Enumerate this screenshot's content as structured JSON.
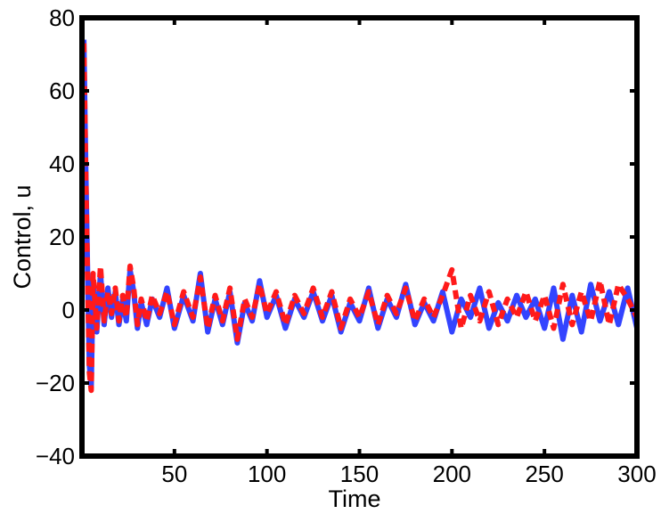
{
  "chart_data": {
    "type": "line",
    "title": "",
    "xlabel": "Time",
    "ylabel": "Control, u",
    "xlim": [
      0,
      300
    ],
    "ylim": [
      -40,
      80
    ],
    "xticks": [
      50,
      100,
      150,
      200,
      250,
      300
    ],
    "yticks": [
      -40,
      -20,
      0,
      20,
      40,
      60,
      80
    ],
    "xtick_labels": [
      "50",
      "100",
      "150",
      "200",
      "250",
      "300"
    ],
    "ytick_labels": [
      "−40",
      "−20",
      "0",
      "20",
      "40",
      "60",
      "80"
    ],
    "grid": false,
    "legend": "none",
    "series": [
      {
        "color": "#3344ff",
        "line_style": "solid",
        "x": [
          1,
          2,
          3,
          4,
          5,
          6,
          8,
          10,
          12,
          14,
          16,
          18,
          20,
          22,
          24,
          26,
          28,
          30,
          32,
          35,
          38,
          42,
          46,
          50,
          55,
          60,
          64,
          68,
          72,
          76,
          80,
          84,
          88,
          92,
          96,
          100,
          105,
          110,
          115,
          120,
          125,
          130,
          135,
          140,
          145,
          150,
          155,
          160,
          165,
          170,
          175,
          180,
          185,
          190,
          195,
          200,
          205,
          210,
          215,
          220,
          225,
          230,
          235,
          240,
          245,
          250,
          255,
          260,
          265,
          270,
          275,
          280,
          285,
          290,
          295,
          300
        ],
        "y": [
          74,
          40,
          12,
          -15,
          -21,
          8,
          -6,
          10,
          -4,
          6,
          -2,
          5,
          -4,
          3,
          -3,
          11,
          5,
          -5,
          2,
          -4,
          3,
          -2,
          6,
          -5,
          4,
          -3,
          10,
          -6,
          3,
          -4,
          5,
          -9,
          2,
          -3,
          8,
          -2,
          4,
          -5,
          3,
          -2,
          5,
          -3,
          4,
          -6,
          2,
          -3,
          6,
          -5,
          3,
          -2,
          7,
          -4,
          2,
          -3,
          5,
          -6,
          3,
          -2,
          6,
          -5,
          2,
          -3,
          4,
          -2,
          3,
          -5,
          6,
          -8,
          4,
          -6,
          7,
          -3,
          5,
          -4,
          6,
          -5
        ]
      },
      {
        "color": "#ff1a1a",
        "line_style": "dashed",
        "x": [
          1,
          2,
          3,
          4,
          5,
          6,
          8,
          10,
          12,
          14,
          16,
          18,
          20,
          22,
          24,
          26,
          28,
          30,
          32,
          35,
          38,
          42,
          46,
          50,
          55,
          60,
          64,
          68,
          72,
          76,
          80,
          84,
          88,
          92,
          96,
          100,
          105,
          110,
          115,
          120,
          125,
          130,
          135,
          140,
          145,
          150,
          155,
          160,
          165,
          170,
          175,
          180,
          185,
          190,
          195,
          200,
          205,
          210,
          215,
          220,
          225,
          230,
          235,
          240,
          245,
          250,
          255,
          260,
          265,
          270,
          275,
          280,
          285,
          290,
          295,
          300
        ],
        "y": [
          73,
          38,
          10,
          -17,
          -22,
          10,
          -5,
          12,
          -3,
          5,
          -1,
          6,
          -3,
          4,
          -2,
          12,
          6,
          -4,
          3,
          -3,
          4,
          -1,
          5,
          -4,
          5,
          -2,
          9,
          -5,
          4,
          -3,
          6,
          -8,
          3,
          -2,
          7,
          -1,
          5,
          -4,
          4,
          -1,
          6,
          -2,
          5,
          -5,
          3,
          -2,
          5,
          -4,
          4,
          -1,
          6,
          -3,
          3,
          -2,
          4,
          11,
          -5,
          4,
          -3,
          5,
          -4,
          3,
          -2,
          5,
          -3,
          4,
          -5,
          7,
          -4,
          5,
          -3,
          8,
          -4,
          7,
          3,
          -2
        ]
      }
    ]
  }
}
